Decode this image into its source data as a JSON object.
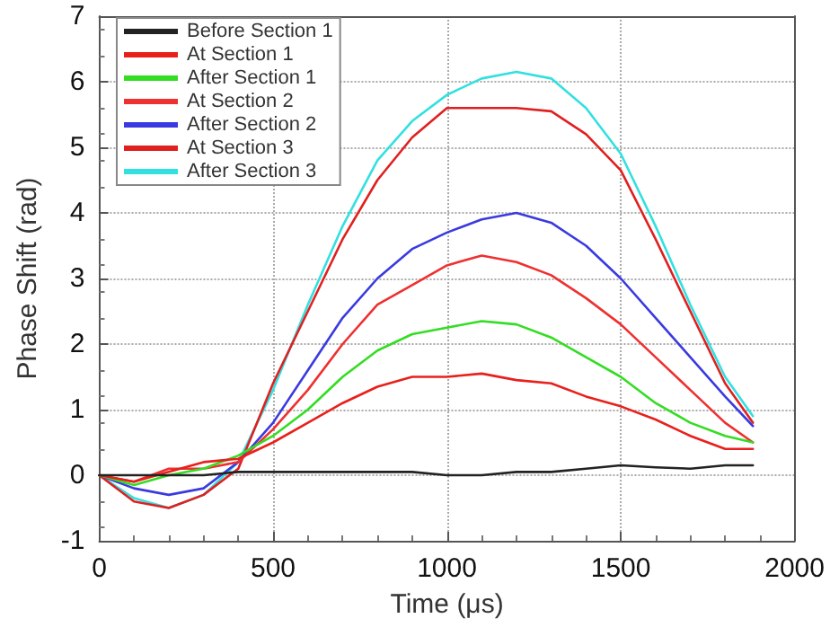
{
  "chart_data": {
    "type": "line",
    "xlabel": "Time (μs)",
    "ylabel": "Phase Shift (rad)",
    "x": [
      0,
      100,
      200,
      300,
      400,
      500,
      600,
      700,
      800,
      900,
      1000,
      1100,
      1200,
      1300,
      1400,
      1500,
      1600,
      1700,
      1800,
      1880
    ],
    "series": [
      {
        "name": "Before Section 1",
        "color": "#222222",
        "values": [
          0,
          0,
          0,
          0,
          0.05,
          0.05,
          0.05,
          0.05,
          0.05,
          0.05,
          0,
          0,
          0.05,
          0.05,
          0.1,
          0.15,
          0.12,
          0.1,
          0.15,
          0.15
        ]
      },
      {
        "name": "At Section 1",
        "color": "#e8201c",
        "values": [
          0,
          -0.1,
          0.05,
          0.2,
          0.25,
          0.5,
          0.8,
          1.1,
          1.35,
          1.5,
          1.5,
          1.55,
          1.45,
          1.4,
          1.2,
          1.05,
          0.85,
          0.6,
          0.4,
          0.4
        ]
      },
      {
        "name": "After Section 1",
        "color": "#33dd22",
        "values": [
          0,
          -0.15,
          0,
          0.1,
          0.3,
          0.6,
          1,
          1.5,
          1.9,
          2.15,
          2.25,
          2.35,
          2.3,
          2.1,
          1.8,
          1.5,
          1.1,
          0.8,
          0.6,
          0.5
        ]
      },
      {
        "name": "At Section 2",
        "color": "#ee3030",
        "values": [
          0,
          -0.1,
          0.1,
          0.1,
          0.2,
          0.7,
          1.3,
          2,
          2.6,
          2.9,
          3.2,
          3.35,
          3.25,
          3.05,
          2.7,
          2.3,
          1.8,
          1.3,
          0.8,
          0.5
        ]
      },
      {
        "name": "After Section 2",
        "color": "#3a3ae0",
        "values": [
          0,
          -0.2,
          -0.3,
          -0.2,
          0.2,
          0.8,
          1.6,
          2.4,
          3,
          3.45,
          3.7,
          3.9,
          4,
          3.85,
          3.5,
          3,
          2.4,
          1.8,
          1.2,
          0.75
        ]
      },
      {
        "name": "At Section 3",
        "color": "#e02020",
        "values": [
          0,
          -0.4,
          -0.5,
          -0.3,
          0.1,
          1.4,
          2.5,
          3.6,
          4.5,
          5.15,
          5.6,
          5.6,
          5.6,
          5.55,
          5.2,
          4.65,
          3.6,
          2.5,
          1.4,
          0.8
        ]
      },
      {
        "name": "After Section 3",
        "color": "#33e0e0",
        "values": [
          0,
          -0.35,
          -0.5,
          -0.3,
          0.2,
          1.3,
          2.6,
          3.8,
          4.8,
          5.4,
          5.8,
          6.05,
          6.15,
          6.05,
          5.6,
          4.9,
          3.8,
          2.6,
          1.5,
          0.9
        ]
      }
    ],
    "xlim": [
      0,
      2000
    ],
    "xticks": [
      0,
      500,
      1000,
      1500,
      2000
    ],
    "ylim": [
      -1,
      7
    ],
    "yticks": [
      -1,
      0,
      1,
      2,
      3,
      4,
      5,
      6,
      7
    ],
    "grid": true,
    "legend": "top left",
    "marker": "none",
    "line_style": "solid"
  }
}
